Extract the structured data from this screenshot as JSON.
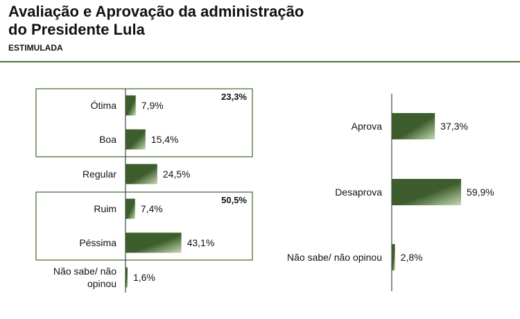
{
  "header": {
    "title_line1": "Avaliação e Aprovação da administração",
    "title_line2": "do Presidente Lula",
    "subtitle": "ESTIMULADA"
  },
  "colors": {
    "bar_dark": "#3d5e2c",
    "bar_light": "#c6d9b3",
    "frame": "#4a7038",
    "axis": "#222222"
  },
  "chart_data": [
    {
      "type": "bar",
      "orientation": "horizontal",
      "categories": [
        "Ótima",
        "Boa",
        "Regular",
        "Ruim",
        "Péssima",
        "Não sabe/ não opinou"
      ],
      "category_lines": [
        [
          "Ótima"
        ],
        [
          "Boa"
        ],
        [
          "Regular"
        ],
        [
          "Ruim"
        ],
        [
          "Péssima"
        ],
        [
          "Não sabe/ não",
          "opinou"
        ]
      ],
      "values": [
        7.9,
        15.4,
        24.5,
        7.4,
        43.1,
        1.6
      ],
      "value_labels": [
        "7,9%",
        "15,4%",
        "24,5%",
        "7,4%",
        "43,1%",
        "1,6%"
      ],
      "groups": [
        {
          "label": "23,3%",
          "value": 23.3,
          "members": [
            0,
            1
          ]
        },
        {
          "label": "50,5%",
          "value": 50.5,
          "members": [
            3,
            4
          ]
        }
      ],
      "xlim": [
        0,
        100
      ]
    },
    {
      "type": "bar",
      "orientation": "horizontal",
      "categories": [
        "Aprova",
        "Desaprova",
        "Não sabe/ não opinou"
      ],
      "values": [
        37.3,
        59.9,
        2.8
      ],
      "value_labels": [
        "37,3%",
        "59,9%",
        "2,8%"
      ],
      "xlim": [
        0,
        100
      ]
    }
  ]
}
